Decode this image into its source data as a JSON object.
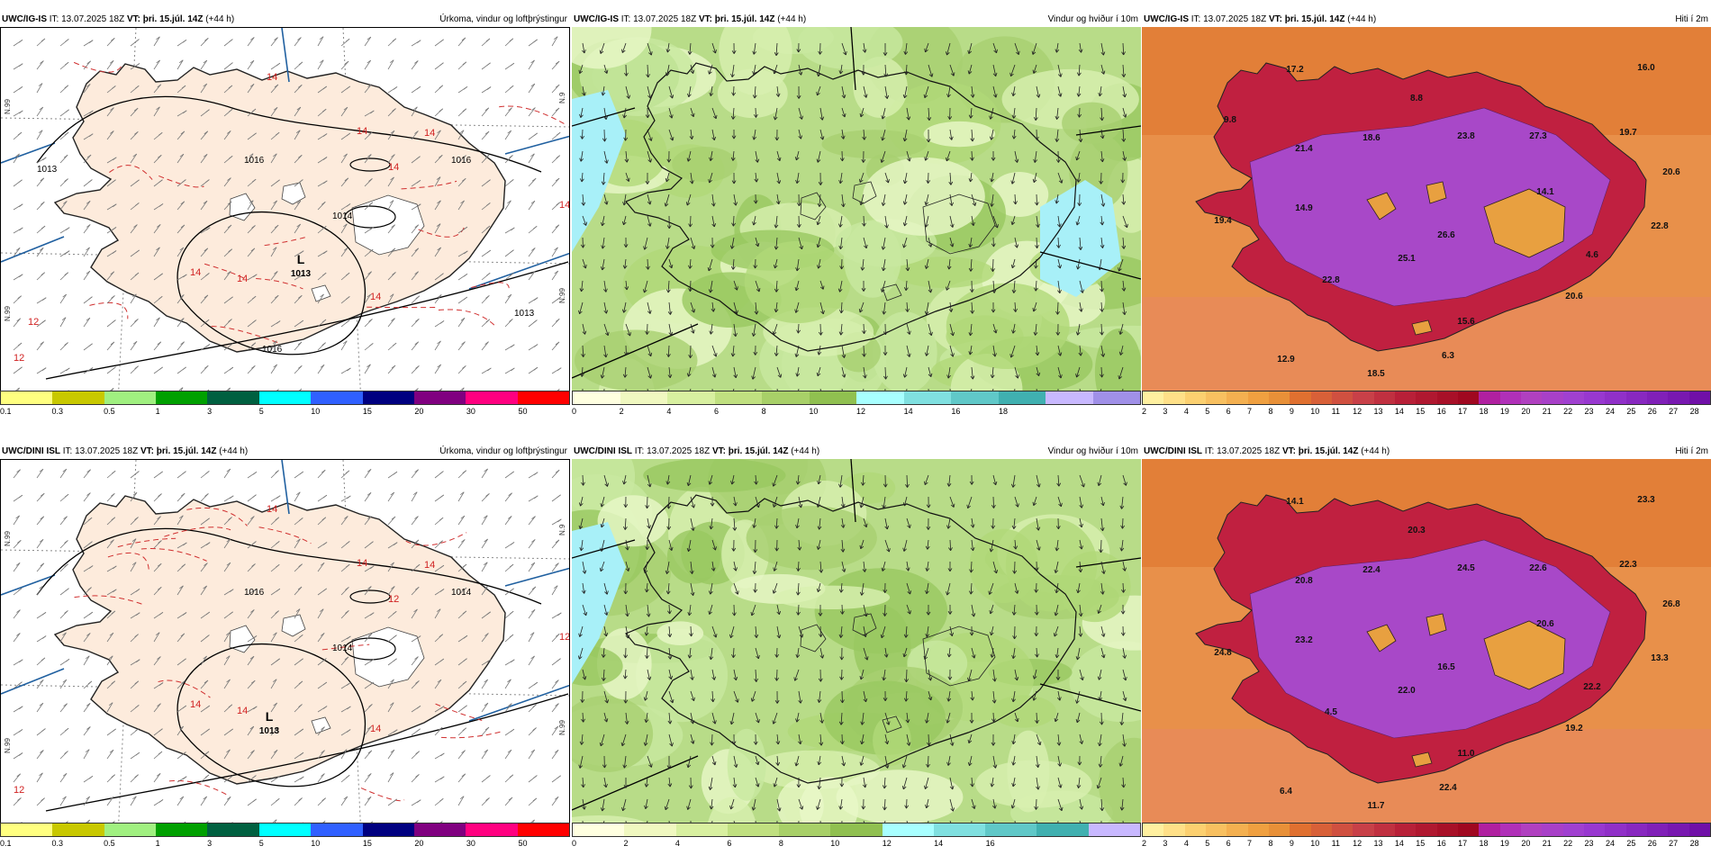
{
  "row1": {
    "model": "UWC/IG-IS",
    "it_label": "IT: 13.07.2025 18Z",
    "vt_label": "VT: þri. 15.júl. 14Z",
    "lead": "(+44 h)"
  },
  "row2": {
    "model": "UWC/DINI ISL",
    "it_label": "IT: 13.07.2025 18Z",
    "vt_label": "VT: þri. 15.júl. 14Z",
    "lead": "(+44 h)"
  },
  "titles": {
    "precip": "Úrkoma, vindur og loftþrýstingur",
    "wind": "Vindur og hviður í 10m",
    "temp": "Hiti í 2m"
  },
  "precip_map": {
    "low_symbol": "L",
    "low_value": "1013",
    "isobar_labels_row1": [
      "1016",
      "1016",
      "1014",
      "1013",
      "1016",
      "1013"
    ],
    "isobar_labels_row2": [
      "1016",
      "1014",
      "1014"
    ],
    "red_labels_row1": [
      "14",
      "14",
      "14",
      "14",
      "14",
      "14",
      "14",
      "14",
      "12",
      "12"
    ],
    "red_labels_row2": [
      "14",
      "14",
      "14",
      "14",
      "14",
      "14",
      "12",
      "12",
      "12"
    ],
    "lat_labels": [
      "N.99",
      "N.99",
      "N.9",
      "N.99"
    ]
  },
  "legends": {
    "precip": {
      "colors": [
        "#ffff80",
        "#c8c800",
        "#a0f080",
        "#00a000",
        "#006040",
        "#00ffff",
        "#3060ff",
        "#000080",
        "#800080",
        "#ff0080",
        "#ff0000"
      ],
      "ticks": [
        "0.1",
        "0.3",
        "0.5",
        "1",
        "3",
        "5",
        "10",
        "15",
        "20",
        "30",
        "50"
      ]
    },
    "wind_row1": {
      "colors": [
        "#ffffe0",
        "#f0f8c0",
        "#d8f0a0",
        "#c0e080",
        "#a8d068",
        "#90c050",
        "#a8ffff",
        "#80e0e0",
        "#60c8c8",
        "#40b0b0",
        "#c8b8ff",
        "#a090e8"
      ],
      "ticks": [
        "0",
        "2",
        "4",
        "6",
        "8",
        "10",
        "12",
        "14",
        "16",
        "18"
      ]
    },
    "wind_row2": {
      "colors": [
        "#ffffe0",
        "#f0f8c0",
        "#d8f0a0",
        "#c0e080",
        "#a8d068",
        "#90c050",
        "#a8ffff",
        "#80e0e0",
        "#60c8c8",
        "#40b0b0",
        "#c8b8ff"
      ],
      "ticks": [
        "0",
        "2",
        "4",
        "6",
        "8",
        "10",
        "12",
        "14",
        "16"
      ]
    },
    "temp": {
      "colors": [
        "#fff0a0",
        "#ffe088",
        "#fcd070",
        "#f8c060",
        "#f4b050",
        "#f0a040",
        "#e89038",
        "#e07030",
        "#d86038",
        "#d05040",
        "#c84048",
        "#c03040",
        "#b82038",
        "#b01830",
        "#a81028",
        "#a00820",
        "#b020a0",
        "#b030b8",
        "#b040c0",
        "#a840c8",
        "#a040d0",
        "#9838d0",
        "#9030c8",
        "#8828c0",
        "#8020b8",
        "#7818b0",
        "#7010a8"
      ],
      "ticks": [
        "2",
        "3",
        "4",
        "5",
        "6",
        "7",
        "8",
        "9",
        "10",
        "11",
        "12",
        "13",
        "14",
        "15",
        "16",
        "17",
        "18",
        "19",
        "20",
        "21",
        "22",
        "23",
        "24",
        "25",
        "26",
        "27",
        "28"
      ]
    }
  },
  "temp_labels_row1": [
    "17.2",
    "16.0",
    "8.8",
    "18.6",
    "21.4",
    "23.8",
    "27.3",
    "19.7",
    "20.6",
    "14.1",
    "14.9",
    "19.4",
    "26.6",
    "22.8",
    "4.6",
    "25.1",
    "22.8",
    "20.6",
    "15.6",
    "6.3",
    "12.9",
    "18.5",
    "9.8"
  ],
  "temp_labels_row2": [
    "14.1",
    "23.3",
    "20.3",
    "22.4",
    "20.8",
    "24.5",
    "22.6",
    "22.3",
    "26.8",
    "20.6",
    "23.2",
    "24.8",
    "16.5",
    "13.3",
    "22.2",
    "22.0",
    "4.5",
    "19.2",
    "11.0",
    "22.4",
    "6.4",
    "11.7"
  ]
}
